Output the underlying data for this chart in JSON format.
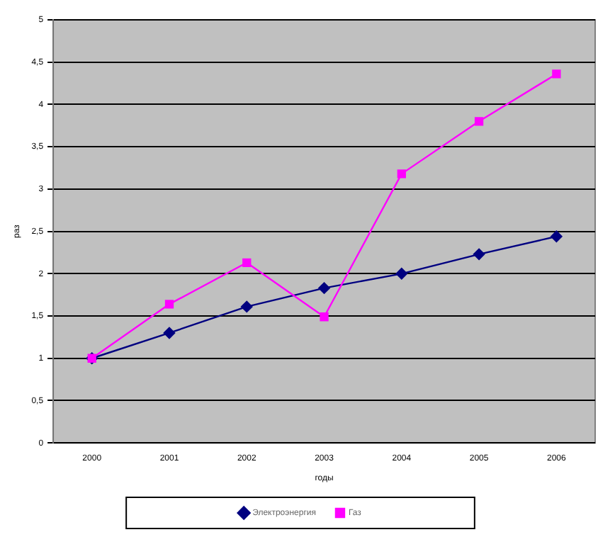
{
  "chart_data": {
    "type": "line",
    "xlabel": "годы",
    "ylabel": "раз",
    "categories": [
      "2000",
      "2001",
      "2002",
      "2003",
      "2004",
      "2005",
      "2006"
    ],
    "series": [
      {
        "name": "Электроэнергия",
        "color": "#000080",
        "marker": "diamond",
        "values": [
          1,
          1.3,
          1.61,
          1.83,
          2,
          2.23,
          2.44
        ]
      },
      {
        "name": "Газ",
        "color": "#ff00ff",
        "marker": "square",
        "values": [
          1,
          1.64,
          2.13,
          1.49,
          3.18,
          3.8,
          4.36
        ]
      }
    ],
    "ylim": [
      0,
      5
    ],
    "yticks": [
      0,
      {
        "value": 0.5,
        "label": "0,5"
      },
      1,
      {
        "value": 1.5,
        "label": "1,5"
      },
      2,
      {
        "value": 2.5,
        "label": "2,5"
      },
      3,
      {
        "value": 3.5,
        "label": "3,5"
      },
      4,
      {
        "value": 4.5,
        "label": "4,5"
      },
      5
    ],
    "grid": "y",
    "legend": "bottom"
  }
}
